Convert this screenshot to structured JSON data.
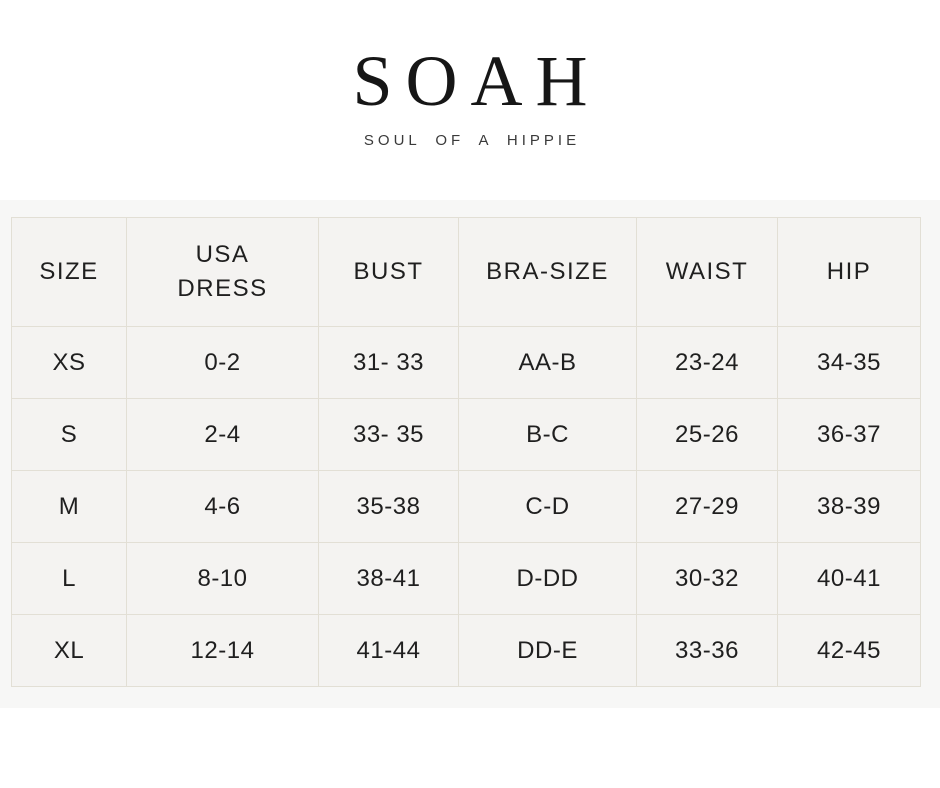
{
  "brand": {
    "logo_text": "SOAH",
    "tagline": "SOUL OF A HIPPIE"
  },
  "chart_data": {
    "type": "table",
    "columns": [
      {
        "id": "size",
        "label": "SIZE"
      },
      {
        "id": "usa-dress",
        "label": "USA\nDRESS"
      },
      {
        "id": "bust",
        "label": "BUST"
      },
      {
        "id": "bra-size",
        "label": "BRA-SIZE"
      },
      {
        "id": "waist",
        "label": "WAIST"
      },
      {
        "id": "hip",
        "label": "HIP"
      }
    ],
    "rows": [
      [
        "XS",
        "0-2",
        "31- 33",
        "AA-B",
        "23-24",
        "34-35"
      ],
      [
        "S",
        "2-4",
        "33- 35",
        "B-C",
        "25-26",
        "36-37"
      ],
      [
        "M",
        "4-6",
        "35-38",
        "C-D",
        "27-29",
        "38-39"
      ],
      [
        "L",
        "8-10",
        "38-41",
        "D-DD",
        "30-32",
        "40-41"
      ],
      [
        "XL",
        "12-14",
        "41-44",
        "DD-E",
        "33-36",
        "42-45"
      ]
    ]
  },
  "colors": {
    "page_background": "#ffffff",
    "band_background": "#f7f7f6",
    "cell_background": "#f4f3f1",
    "cell_border": "#e2dfd5",
    "text": "#1f1f1f",
    "logo_text": "#161616",
    "tagline_text": "#3a3a3a"
  }
}
